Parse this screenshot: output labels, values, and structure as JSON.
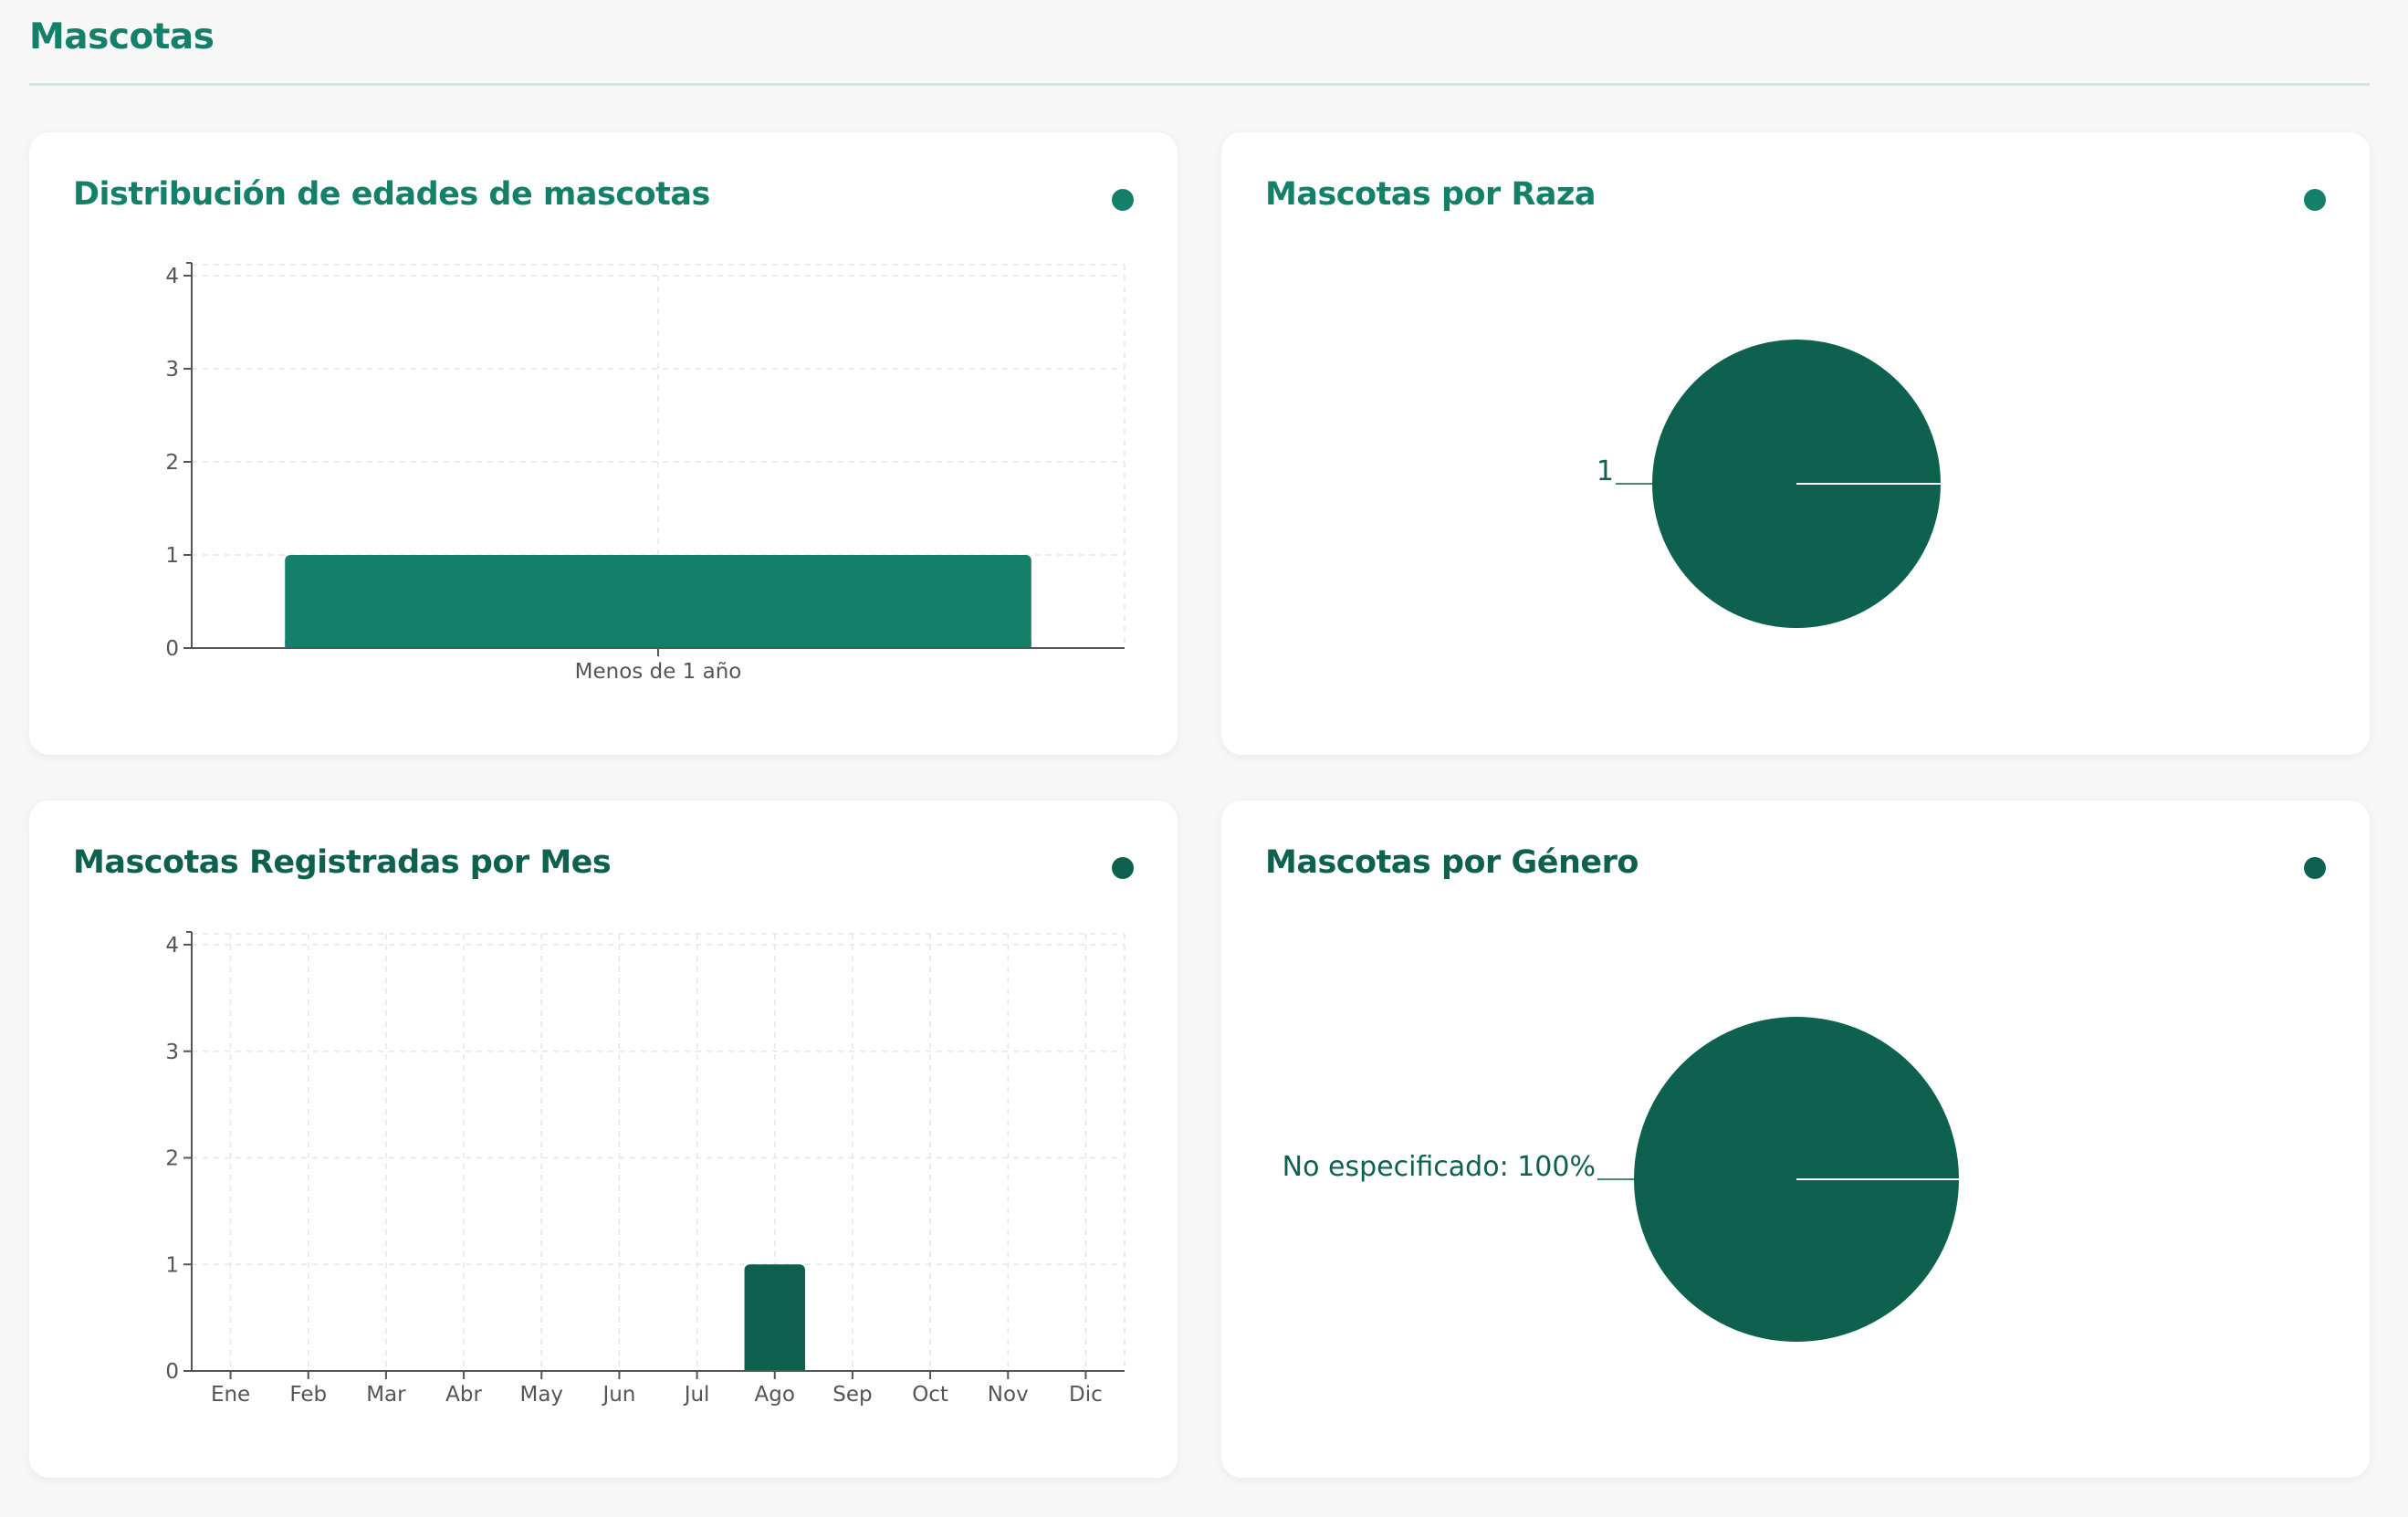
{
  "page": {
    "title": "Mascotas"
  },
  "colors": {
    "accent": "#15806a",
    "dark": "#0e614f",
    "rule": "#d3e6df",
    "axis": "#555555",
    "grid": "#e6e6e6",
    "label": "#555555"
  },
  "cards": {
    "ages": {
      "title": "Distribución de edades de mascotas"
    },
    "breed": {
      "title": "Mascotas por Raza"
    },
    "monthly": {
      "title": "Mascotas Registradas por Mes"
    },
    "gender": {
      "title": "Mascotas por Género"
    }
  },
  "chart_data": [
    {
      "id": "ages",
      "type": "bar",
      "title": "Distribución de edades de mascotas",
      "categories": [
        "Menos de 1 año"
      ],
      "values": [
        1
      ],
      "ylim": [
        0,
        4
      ],
      "yticks": [
        0,
        1,
        2,
        3,
        4
      ],
      "grid": true,
      "color": "#15806a"
    },
    {
      "id": "breed",
      "type": "pie",
      "title": "Mascotas por Raza",
      "slices": [
        {
          "label": "1",
          "value": 1
        }
      ],
      "color": "#0e614f"
    },
    {
      "id": "monthly",
      "type": "bar",
      "title": "Mascotas Registradas por Mes",
      "categories": [
        "Ene",
        "Feb",
        "Mar",
        "Abr",
        "May",
        "Jun",
        "Jul",
        "Ago",
        "Sep",
        "Oct",
        "Nov",
        "Dic"
      ],
      "values": [
        0,
        0,
        0,
        0,
        0,
        0,
        0,
        1,
        0,
        0,
        0,
        0
      ],
      "ylim": [
        0,
        4
      ],
      "yticks": [
        0,
        1,
        2,
        3,
        4
      ],
      "grid": true,
      "color": "#0e614f"
    },
    {
      "id": "gender",
      "type": "pie",
      "title": "Mascotas por Género",
      "slices": [
        {
          "label": "No especificado: 100%",
          "value": 1
        }
      ],
      "color": "#0e614f"
    }
  ]
}
